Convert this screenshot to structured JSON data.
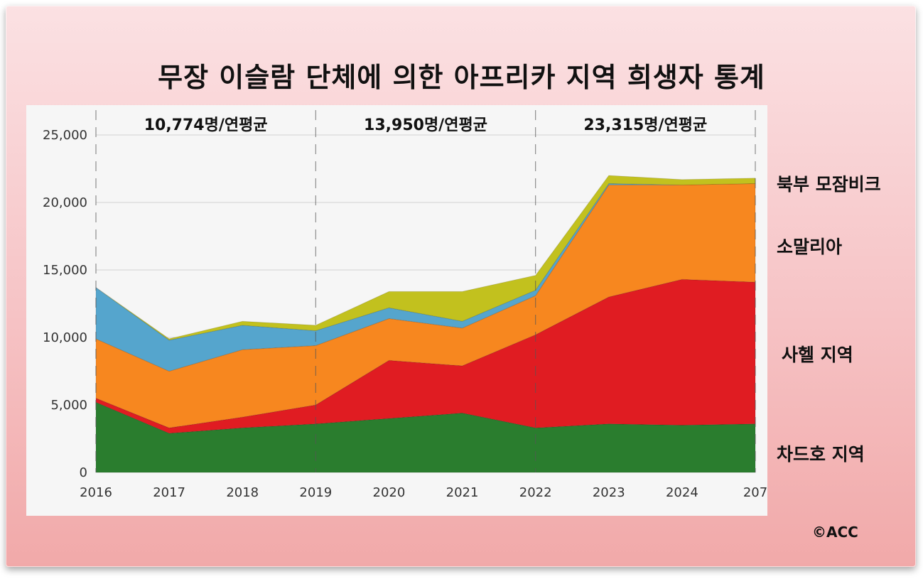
{
  "chart_data": {
    "type": "area",
    "stacked": true,
    "title": "무장 이슬람 단체에 의한 아프리카 지역 희생자 통계",
    "categories": [
      "2016",
      "2017",
      "2018",
      "2019",
      "2020",
      "2021",
      "2022",
      "2023",
      "2024",
      "207"
    ],
    "x_tick_labels": [
      "2016",
      "2017",
      "2018",
      "2019",
      "2020",
      "2021",
      "2022",
      "2023",
      "2024",
      "207"
    ],
    "y_tick_labels": [
      "0",
      "5,000",
      "10,000",
      "15,000",
      "20,000",
      "25,000"
    ],
    "ylim": [
      0,
      25000
    ],
    "xlabel": "",
    "ylabel": "",
    "series": [
      {
        "name": "차드호 지역",
        "color": "#2a7d2e",
        "values": [
          5200,
          2900,
          3300,
          3600,
          4000,
          4400,
          3300,
          3600,
          3500,
          3600
        ]
      },
      {
        "name": "사헬 지역",
        "color": "#e01c22",
        "values": [
          300,
          400,
          800,
          1400,
          4300,
          3500,
          6900,
          9400,
          10800,
          10500
        ]
      },
      {
        "name": "소말리아",
        "color": "#f7871f",
        "values": [
          4400,
          4200,
          5000,
          4400,
          3100,
          2800,
          2900,
          8300,
          7000,
          7300
        ]
      },
      {
        "name": "",
        "color": "#55a5cd",
        "values": [
          3800,
          2300,
          1800,
          1100,
          800,
          500,
          400,
          100,
          0,
          0
        ]
      },
      {
        "name": "북부 모잠비크",
        "color": "#c2c11e",
        "values": [
          0,
          100,
          300,
          400,
          1200,
          2200,
          1100,
          600,
          400,
          400
        ]
      }
    ],
    "period_averages": [
      {
        "label": "10,774명/연평균",
        "range": [
          "2016",
          "2019"
        ]
      },
      {
        "label": "13,950명/연평균",
        "range": [
          "2019",
          "2022"
        ]
      },
      {
        "label": "23,315명/연평균",
        "range": [
          "2022",
          "207"
        ]
      }
    ],
    "legend": "right-side labels"
  },
  "labels": {
    "north_mozambique": "북부 모잠비크",
    "somalia": "소말리아",
    "sahel": "사헬 지역",
    "lake_chad": "차드호 지역"
  },
  "credit": "©ACC"
}
